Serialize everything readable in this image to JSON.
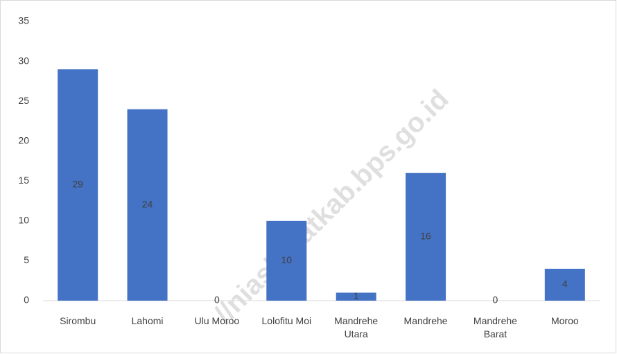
{
  "chart_data": {
    "type": "bar",
    "categories": [
      "Sirombu",
      "Lahomi",
      "Ulu Moroo",
      "Lolofitu Moi",
      "Mandrehe Utara",
      "Mandrehe",
      "Mandrehe Barat",
      "Moroo"
    ],
    "values": [
      29,
      24,
      0,
      10,
      1,
      16,
      0,
      4
    ],
    "color": "#4472c4",
    "ylim": [
      0,
      35
    ],
    "yticks": [
      0,
      5,
      10,
      15,
      20,
      25,
      30,
      35
    ],
    "grid": false,
    "watermark": "//niasbaratkab.bps.go.id"
  }
}
